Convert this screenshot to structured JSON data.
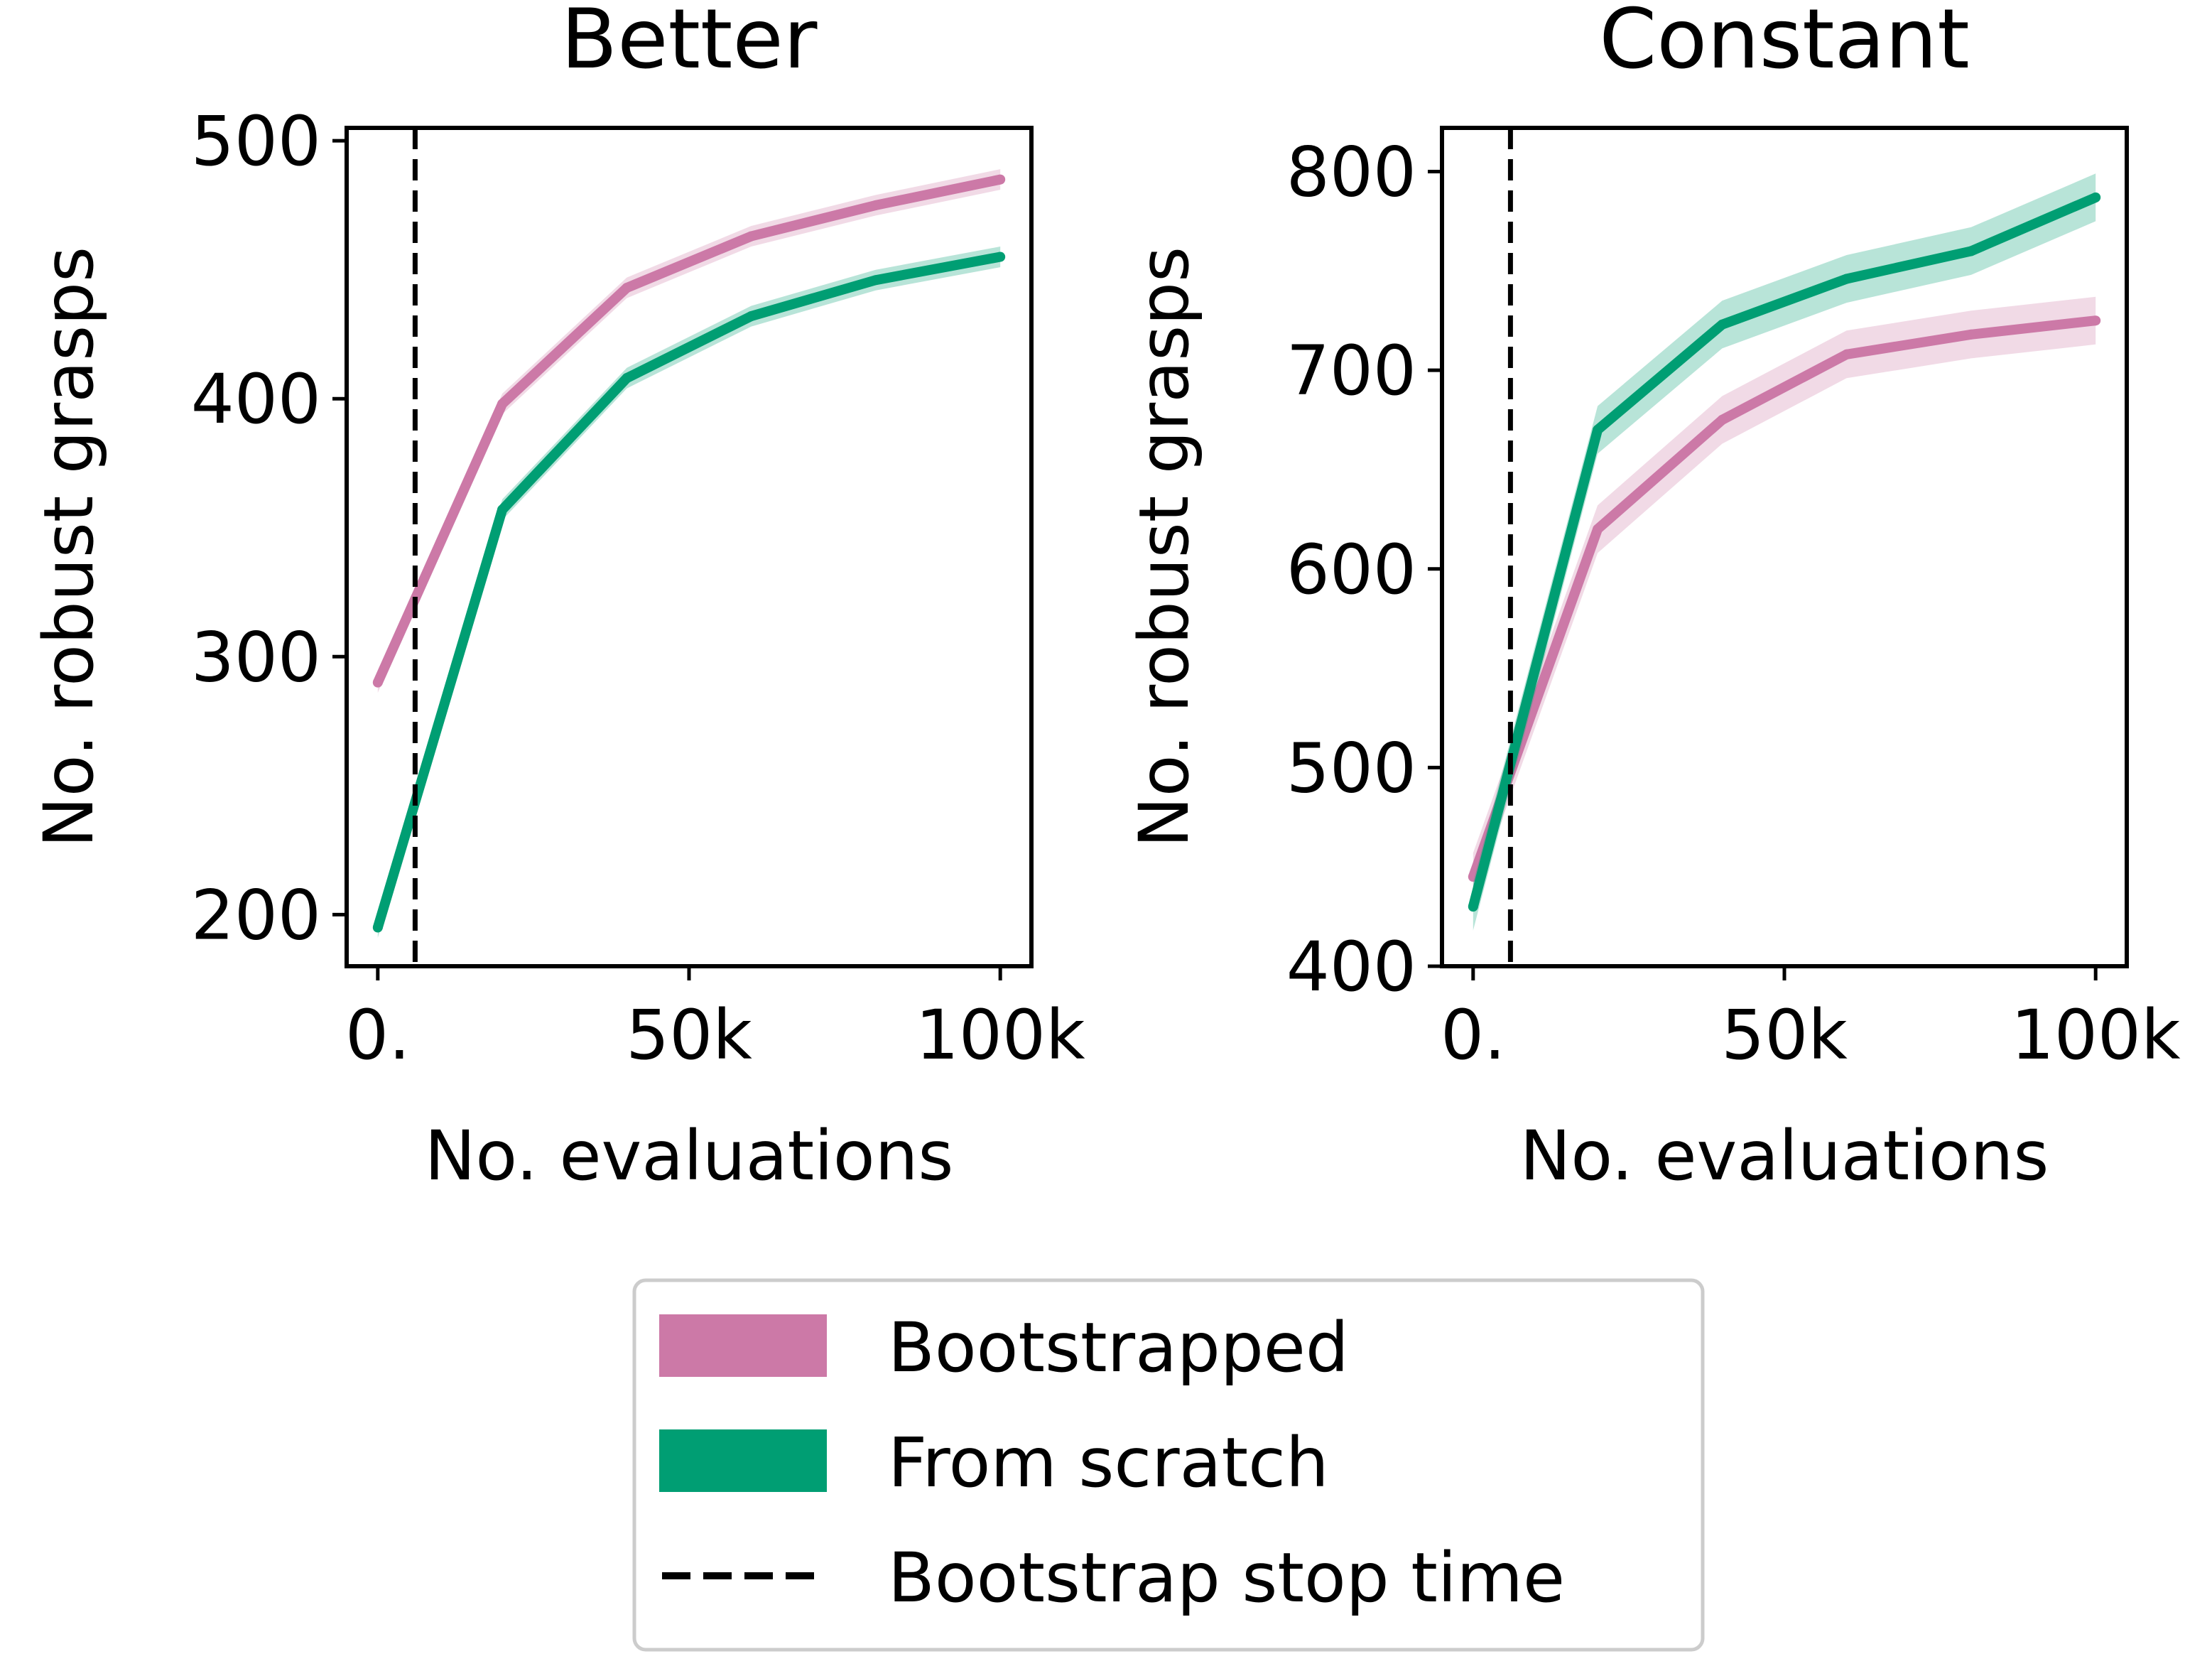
{
  "chart_data": [
    {
      "type": "line",
      "title": "Better",
      "xlabel": "No. evaluations",
      "ylabel": "No. robust grasps",
      "xlim": [
        -5000,
        105000
      ],
      "ylim": [
        180,
        505
      ],
      "xticks": [
        0,
        50000,
        100000
      ],
      "xtick_labels": [
        "0.",
        "50k",
        "100k"
      ],
      "yticks": [
        200,
        300,
        400,
        500
      ],
      "ytick_labels": [
        "200",
        "300",
        "400",
        "500"
      ],
      "grid": false,
      "bootstrap_stop_x": 6000,
      "x": [
        0,
        20000,
        40000,
        60000,
        80000,
        100000
      ],
      "series": [
        {
          "name": "Bootstrapped",
          "color": "#cc79a7",
          "values": [
            290,
            398,
            443,
            463,
            475,
            485
          ],
          "band": 4
        },
        {
          "name": "From scratch",
          "color": "#009e73",
          "values": [
            195,
            357,
            408,
            432,
            446,
            455
          ],
          "band": 4
        }
      ]
    },
    {
      "type": "line",
      "title": "Constant",
      "xlabel": "No. evaluations",
      "ylabel": "No. robust grasps",
      "xlim": [
        -5000,
        105000
      ],
      "ylim": [
        400,
        822
      ],
      "xticks": [
        0,
        50000,
        100000
      ],
      "xtick_labels": [
        "0.",
        "50k",
        "100k"
      ],
      "yticks": [
        400,
        500,
        600,
        700,
        800
      ],
      "ytick_labels": [
        "400",
        "500",
        "600",
        "700",
        "800"
      ],
      "grid": false,
      "bootstrap_stop_x": 6000,
      "x": [
        0,
        20000,
        40000,
        60000,
        80000,
        100000
      ],
      "series": [
        {
          "name": "Bootstrapped",
          "color": "#cc79a7",
          "values": [
            445,
            620,
            675,
            708,
            718,
            725
          ],
          "band": 12
        },
        {
          "name": "From scratch",
          "color": "#009e73",
          "values": [
            430,
            670,
            723,
            746,
            760,
            787
          ],
          "band": 12
        }
      ]
    }
  ],
  "legend": {
    "placement": "bottom-center",
    "items": [
      {
        "label": "Bootstrapped",
        "kind": "patch",
        "color": "#cc79a7"
      },
      {
        "label": "From scratch",
        "kind": "patch",
        "color": "#009e73"
      },
      {
        "label": "Bootstrap stop time",
        "kind": "dashed-line",
        "color": "#000000"
      }
    ]
  }
}
